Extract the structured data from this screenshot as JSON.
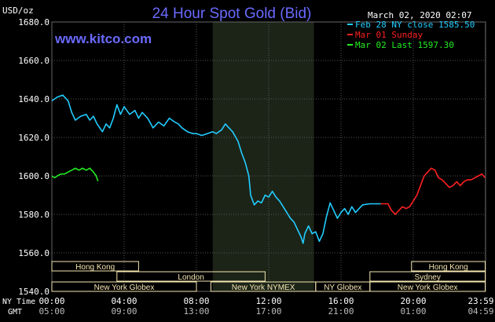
{
  "header": {
    "title": "24 Hour Spot Gold (Bid)",
    "datetime": "March 02, 2020 02:07",
    "website": "www.kitco.com",
    "units": "USD/oz"
  },
  "legend": [
    {
      "label": "Feb 28 NY close 1585.50",
      "color": "#22ccff"
    },
    {
      "label": "Mar 01 Sunday",
      "color": "#ff2020"
    },
    {
      "label": "Mar 02 Last 1597.30",
      "color": "#22ee22"
    }
  ],
  "row_labels": {
    "ny_time": "NY Time",
    "gmt": "GMT"
  },
  "colors": {
    "background": "#000000",
    "plot_bg": "#000000",
    "shaded_session": "#1c2418",
    "grid": "#555555",
    "axis_text": "#ffffff",
    "title": "#6a6aff",
    "website": "#6a6aff",
    "session_bar": "#f5e6b0",
    "session_text": "#000000"
  },
  "chart_data": {
    "type": "line",
    "title": "24 Hour Spot Gold (Bid)",
    "ylabel": "USD/oz",
    "xlim": [
      0,
      24
    ],
    "ylim": [
      1540,
      1680
    ],
    "yticks": [
      "1540.0",
      "1560.0",
      "1580.0",
      "1600.0",
      "1620.0",
      "1640.0",
      "1660.0",
      "1680.0"
    ],
    "xticks_ny": [
      "00:00",
      "04:00",
      "08:00",
      "12:00",
      "16:00",
      "20:00",
      "23:59"
    ],
    "xticks_gmt": [
      "05:00",
      "09:00",
      "13:00",
      "17:00",
      "21:00",
      "01:00",
      "04:59"
    ],
    "xtick_positions": [
      0,
      4,
      8,
      12,
      16,
      20,
      23.98
    ],
    "shaded_range": [
      8.9,
      14.5
    ],
    "series": [
      {
        "name": "Feb 28 NY close 1585.50",
        "color": "#22ccff",
        "points": [
          [
            0.0,
            1639
          ],
          [
            0.3,
            1641
          ],
          [
            0.6,
            1642
          ],
          [
            0.9,
            1639
          ],
          [
            1.1,
            1633
          ],
          [
            1.3,
            1629
          ],
          [
            1.6,
            1631
          ],
          [
            1.9,
            1632
          ],
          [
            2.1,
            1629
          ],
          [
            2.3,
            1631
          ],
          [
            2.5,
            1627
          ],
          [
            2.8,
            1623
          ],
          [
            3.0,
            1627
          ],
          [
            3.2,
            1625
          ],
          [
            3.4,
            1630
          ],
          [
            3.6,
            1637
          ],
          [
            3.8,
            1632
          ],
          [
            4.0,
            1636
          ],
          [
            4.3,
            1632
          ],
          [
            4.6,
            1634
          ],
          [
            4.8,
            1630
          ],
          [
            5.0,
            1633
          ],
          [
            5.3,
            1630
          ],
          [
            5.6,
            1625
          ],
          [
            5.9,
            1628
          ],
          [
            6.2,
            1626
          ],
          [
            6.5,
            1630
          ],
          [
            6.8,
            1628
          ],
          [
            7.0,
            1627
          ],
          [
            7.2,
            1625
          ],
          [
            7.5,
            1623
          ],
          [
            7.8,
            1622
          ],
          [
            8.0,
            1622
          ],
          [
            8.3,
            1621
          ],
          [
            8.6,
            1622
          ],
          [
            8.9,
            1623
          ],
          [
            9.1,
            1622
          ],
          [
            9.4,
            1624
          ],
          [
            9.6,
            1627
          ],
          [
            9.8,
            1625
          ],
          [
            10.0,
            1623
          ],
          [
            10.3,
            1618
          ],
          [
            10.5,
            1612
          ],
          [
            10.7,
            1607
          ],
          [
            10.9,
            1600
          ],
          [
            11.0,
            1590
          ],
          [
            11.2,
            1585
          ],
          [
            11.4,
            1587
          ],
          [
            11.6,
            1586
          ],
          [
            11.8,
            1590
          ],
          [
            12.0,
            1589
          ],
          [
            12.2,
            1592
          ],
          [
            12.4,
            1589
          ],
          [
            12.6,
            1587
          ],
          [
            12.8,
            1584
          ],
          [
            13.0,
            1581
          ],
          [
            13.2,
            1578
          ],
          [
            13.4,
            1576
          ],
          [
            13.6,
            1572
          ],
          [
            13.8,
            1568
          ],
          [
            13.9,
            1565
          ],
          [
            14.0,
            1570
          ],
          [
            14.2,
            1574
          ],
          [
            14.4,
            1570
          ],
          [
            14.6,
            1571
          ],
          [
            14.8,
            1566
          ],
          [
            15.0,
            1570
          ],
          [
            15.2,
            1579
          ],
          [
            15.4,
            1586
          ],
          [
            15.6,
            1582
          ],
          [
            15.8,
            1578
          ],
          [
            16.0,
            1581
          ],
          [
            16.2,
            1583
          ],
          [
            16.4,
            1580
          ],
          [
            16.6,
            1584
          ],
          [
            16.8,
            1581
          ],
          [
            17.0,
            1583
          ],
          [
            17.2,
            1585
          ],
          [
            17.6,
            1585.5
          ],
          [
            18.0,
            1585.5
          ],
          [
            18.2,
            1585.5
          ]
        ]
      },
      {
        "name": "Mar 01 Sunday",
        "color": "#ff2020",
        "points": [
          [
            18.2,
            1585.5
          ],
          [
            18.6,
            1585.5
          ],
          [
            18.8,
            1582
          ],
          [
            19.0,
            1580
          ],
          [
            19.2,
            1582
          ],
          [
            19.4,
            1584
          ],
          [
            19.6,
            1583
          ],
          [
            19.8,
            1584
          ],
          [
            20.0,
            1587
          ],
          [
            20.2,
            1590
          ],
          [
            20.4,
            1595
          ],
          [
            20.6,
            1600
          ],
          [
            20.8,
            1602
          ],
          [
            21.0,
            1604
          ],
          [
            21.2,
            1603
          ],
          [
            21.4,
            1599
          ],
          [
            21.6,
            1598
          ],
          [
            21.8,
            1596
          ],
          [
            22.0,
            1594
          ],
          [
            22.2,
            1595
          ],
          [
            22.4,
            1597
          ],
          [
            22.6,
            1595
          ],
          [
            22.8,
            1597
          ],
          [
            23.0,
            1598
          ],
          [
            23.2,
            1598
          ],
          [
            23.4,
            1599
          ],
          [
            23.6,
            1600
          ],
          [
            23.8,
            1601
          ],
          [
            23.98,
            1599
          ]
        ]
      },
      {
        "name": "Mar 02 Last 1597.30",
        "color": "#22ee22",
        "points": [
          [
            0.0,
            1600
          ],
          [
            0.15,
            1599
          ],
          [
            0.3,
            1600
          ],
          [
            0.5,
            1601
          ],
          [
            0.7,
            1601
          ],
          [
            0.9,
            1602
          ],
          [
            1.1,
            1603
          ],
          [
            1.3,
            1604
          ],
          [
            1.5,
            1603
          ],
          [
            1.7,
            1604
          ],
          [
            1.9,
            1603
          ],
          [
            2.1,
            1604
          ],
          [
            2.3,
            1602
          ],
          [
            2.45,
            1600
          ],
          [
            2.55,
            1597.3
          ]
        ]
      }
    ],
    "session_rows": [
      [
        {
          "label": "Hong Kong",
          "start": 0.0,
          "end": 4.8
        },
        {
          "label": "Hong Kong",
          "start": 19.9,
          "end": 23.98
        }
      ],
      [
        {
          "label": "London",
          "start": 3.6,
          "end": 11.8
        },
        {
          "label": "Sydney",
          "start": 17.6,
          "end": 23.98
        }
      ],
      [
        {
          "label": "New York Globex",
          "start": 0.0,
          "end": 8.0
        },
        {
          "label": "New York NYMEX",
          "start": 8.8,
          "end": 14.6
        },
        {
          "label": "NY Globex",
          "start": 14.6,
          "end": 17.6
        },
        {
          "label": "New York Globex",
          "start": 17.6,
          "end": 23.98
        }
      ]
    ]
  }
}
